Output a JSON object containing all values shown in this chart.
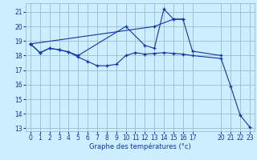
{
  "xlabel": "Graphe des températures (°c)",
  "background_color": "#cceeff",
  "grid_color": "#99bbcc",
  "line_color": "#1133aa",
  "xlim": [
    -0.5,
    23.5
  ],
  "ylim": [
    12.8,
    21.6
  ],
  "xticks": [
    0,
    1,
    2,
    3,
    4,
    5,
    6,
    7,
    8,
    9,
    10,
    11,
    12,
    13,
    14,
    15,
    16,
    17,
    20,
    21,
    22,
    23
  ],
  "yticks": [
    13,
    14,
    15,
    16,
    17,
    18,
    19,
    20,
    21
  ],
  "series": [
    {
      "x": [
        0,
        1,
        2,
        3,
        4,
        5,
        6,
        7,
        8,
        9,
        10,
        11,
        12,
        13,
        14,
        15,
        16,
        17,
        20,
        21,
        22,
        23
      ],
      "y": [
        18.8,
        18.2,
        18.5,
        18.4,
        18.25,
        17.9,
        17.6,
        17.3,
        17.3,
        17.4,
        18.0,
        18.2,
        18.1,
        18.15,
        18.2,
        18.15,
        18.1,
        18.0,
        17.8,
        15.9,
        13.9,
        13.1
      ]
    },
    {
      "x": [
        0,
        1,
        2,
        3,
        4,
        5,
        10,
        12,
        13,
        14,
        15,
        16,
        17,
        20
      ],
      "y": [
        18.8,
        18.2,
        18.5,
        18.4,
        18.25,
        18.0,
        20.0,
        18.7,
        18.5,
        21.2,
        20.5,
        20.5,
        18.3,
        18.0
      ]
    },
    {
      "x": [
        0,
        13,
        15,
        16
      ],
      "y": [
        18.8,
        20.0,
        20.5,
        20.5
      ]
    }
  ]
}
